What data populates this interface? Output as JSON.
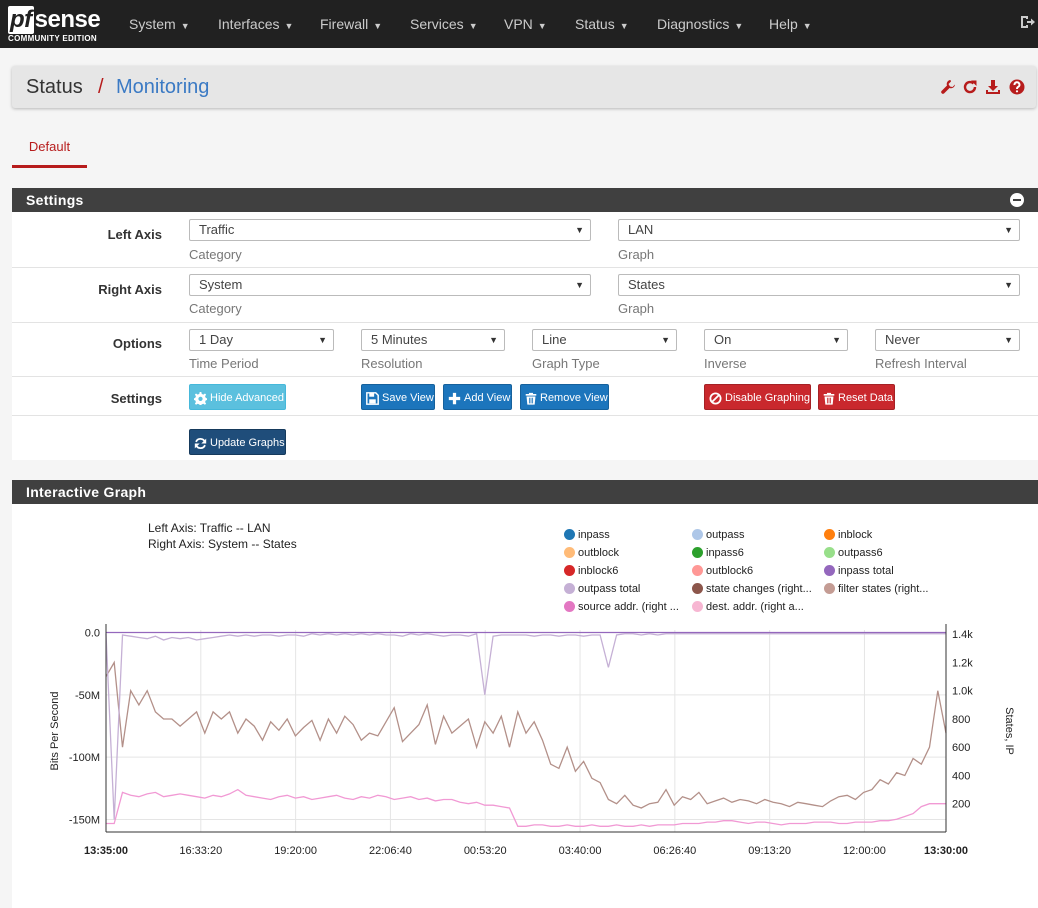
{
  "nav": {
    "logo_main": "sense",
    "logo_pf": "pf",
    "logo_sub": "COMMUNITY EDITION",
    "items": [
      {
        "label": "System"
      },
      {
        "label": "Interfaces"
      },
      {
        "label": "Firewall"
      },
      {
        "label": "Services"
      },
      {
        "label": "VPN"
      },
      {
        "label": "Status"
      },
      {
        "label": "Diagnostics"
      },
      {
        "label": "Help"
      }
    ]
  },
  "breadcrumb": {
    "section": "Status",
    "separator": "/",
    "page": "Monitoring",
    "icons": [
      "wrench-icon",
      "refresh-icon",
      "download-icon",
      "help-icon"
    ],
    "icon_color": "#b71c1c"
  },
  "tabs": [
    {
      "label": "Default",
      "active": true
    }
  ],
  "settings": {
    "title": "Settings",
    "left_axis": {
      "label": "Left Axis",
      "category_value": "Traffic",
      "category_hint": "Category",
      "graph_value": "LAN",
      "graph_hint": "Graph"
    },
    "right_axis": {
      "label": "Right Axis",
      "category_value": "System",
      "category_hint": "Category",
      "graph_value": "States",
      "graph_hint": "Graph"
    },
    "options": {
      "label": "Options",
      "time_period": {
        "value": "1 Day",
        "hint": "Time Period"
      },
      "resolution": {
        "value": "5 Minutes",
        "hint": "Resolution"
      },
      "graph_type": {
        "value": "Line",
        "hint": "Graph Type"
      },
      "inverse": {
        "value": "On",
        "hint": "Inverse"
      },
      "refresh": {
        "value": "Never",
        "hint": "Refresh Interval"
      }
    },
    "buttons": {
      "label": "Settings",
      "hide_advanced": "Hide Advanced",
      "save_view": "Save View",
      "add_view": "Add View",
      "remove_view": "Remove View",
      "disable_graphing": "Disable Graphing",
      "reset_data": "Reset Data",
      "update_graphs": "Update Graphs"
    }
  },
  "graph": {
    "title": "Interactive Graph",
    "left_axis_info": "Left Axis: Traffic -- LAN",
    "right_axis_info": "Right Axis: System -- States",
    "legend": [
      {
        "name": "inpass",
        "color": "#1f77b4"
      },
      {
        "name": "outpass",
        "color": "#aec7e8"
      },
      {
        "name": "inblock",
        "color": "#ff7f0e"
      },
      {
        "name": "outblock",
        "color": "#ffbb78"
      },
      {
        "name": "inpass6",
        "color": "#2ca02c"
      },
      {
        "name": "outpass6",
        "color": "#98df8a"
      },
      {
        "name": "inblock6",
        "color": "#d62728"
      },
      {
        "name": "outblock6",
        "color": "#ff9896"
      },
      {
        "name": "inpass total",
        "color": "#9467bd"
      },
      {
        "name": "outpass total",
        "color": "#c5b0d5"
      },
      {
        "name": "state changes (right...",
        "color": "#8c564b"
      },
      {
        "name": "filter states (right...",
        "color": "#c49c94"
      },
      {
        "name": "source addr. (right ...",
        "color": "#e377c2"
      },
      {
        "name": "dest. addr. (right a...",
        "color": "#f7b6d2"
      }
    ]
  },
  "chart_data": {
    "type": "line",
    "title": "",
    "xlabel": "",
    "ylabel": "Bits Per Second",
    "y2label": "States, IP",
    "x_ticks": [
      "13:35:00",
      "16:33:20",
      "19:20:00",
      "22:06:40",
      "00:53:20",
      "03:40:00",
      "06:26:40",
      "09:13:20",
      "12:00:00",
      "13:30:00"
    ],
    "y_ticks": [
      "0.0",
      "-50M",
      "-100M",
      "-150M"
    ],
    "y_tick_values": [
      0,
      -50000000,
      -100000000,
      -150000000
    ],
    "ylim": [
      -160000000,
      2000000
    ],
    "y2_ticks": [
      "1.4k",
      "1.2k",
      "1.0k",
      "800",
      "600",
      "400",
      "200"
    ],
    "y2_tick_values": [
      1400,
      1200,
      1000,
      800,
      600,
      400,
      200
    ],
    "y2lim": [
      0,
      1430
    ],
    "grid": true,
    "legend_position": "top-right",
    "series": [
      {
        "name": "filter states (right...",
        "axis": "right",
        "color": "#c49c94",
        "stroke": "#b39089",
        "values": [
          1100,
          1200,
          600,
          1000,
          900,
          1000,
          850,
          800,
          800,
          750,
          800,
          850,
          700,
          850,
          800,
          850,
          700,
          800,
          750,
          650,
          780,
          720,
          800,
          680,
          740,
          790,
          650,
          800,
          700,
          820,
          760,
          650,
          700,
          680,
          780,
          880,
          640,
          700,
          760,
          900,
          620,
          820,
          700,
          750,
          800,
          600,
          780,
          700,
          820,
          600,
          850,
          700,
          780,
          650,
          480,
          450,
          600,
          430,
          500,
          380,
          350,
          230,
          200,
          260,
          190,
          170,
          200,
          210,
          300,
          190,
          250,
          230,
          280,
          200,
          220,
          240,
          210,
          230,
          220,
          200,
          230,
          210,
          200,
          180,
          210,
          200,
          190,
          180,
          220,
          250,
          260,
          230,
          280,
          300,
          370,
          340,
          420,
          400,
          520,
          480,
          600,
          1000,
          700
        ]
      },
      {
        "name": "source addr. (right ...",
        "axis": "right",
        "color": "#e377c2",
        "stroke": "#f199d4",
        "values": [
          60,
          60,
          280,
          260,
          250,
          270,
          280,
          250,
          260,
          270,
          260,
          250,
          240,
          260,
          250,
          270,
          300,
          260,
          250,
          240,
          230,
          250,
          260,
          240,
          250,
          230,
          240,
          250,
          260,
          240,
          230,
          250,
          240,
          260,
          250,
          230,
          240,
          250,
          230,
          240,
          220,
          230,
          230,
          210,
          200,
          210,
          190,
          190,
          180,
          170,
          40,
          40,
          50,
          50,
          40,
          40,
          50,
          40,
          40,
          50,
          40,
          40,
          50,
          40,
          40,
          50,
          40,
          50,
          50,
          50,
          60,
          60,
          60,
          70,
          70,
          80,
          80,
          70,
          60,
          70,
          70,
          60,
          50,
          60,
          60,
          60,
          70,
          70,
          70,
          60,
          60,
          70,
          70,
          70,
          80,
          80,
          90,
          110,
          130,
          180,
          200,
          200,
          200
        ]
      },
      {
        "name": "inpass total",
        "axis": "left",
        "color": "#9467bd",
        "values": [
          0,
          0,
          0,
          0,
          0,
          0,
          0,
          0,
          0,
          0,
          0,
          0,
          0,
          0,
          0,
          0,
          0,
          0,
          0,
          0,
          0,
          0,
          0,
          0,
          0,
          0,
          0,
          0,
          0,
          0,
          0,
          0,
          0,
          0,
          0,
          0,
          0,
          0,
          0,
          0,
          0,
          0,
          0,
          0,
          0,
          0,
          0,
          0,
          0,
          0,
          0,
          0,
          0,
          0,
          0,
          0,
          0,
          0,
          0,
          0,
          0,
          0,
          0,
          0,
          0,
          0,
          0,
          0,
          0,
          0,
          0,
          0,
          0,
          0,
          0,
          0,
          0,
          0,
          0,
          0,
          0,
          0,
          0,
          0,
          0,
          0,
          0,
          0,
          0,
          0,
          0,
          0,
          0,
          0,
          0,
          0,
          0,
          0,
          0,
          0,
          0,
          0,
          0
        ]
      },
      {
        "name": "outpass total",
        "axis": "left",
        "color": "#c5b0d5",
        "values": [
          -1000000,
          -150000000,
          -2000000,
          -3000000,
          -4000000,
          -5000000,
          -3000000,
          -6000000,
          -4000000,
          -5000000,
          -4000000,
          -6000000,
          -5000000,
          -4000000,
          -3000000,
          -2000000,
          -3000000,
          -2000000,
          -3000000,
          -2000000,
          -2000000,
          -3000000,
          -2000000,
          -2000000,
          -3000000,
          -1000000,
          -2000000,
          -1000000,
          -2000000,
          -1000000,
          -2000000,
          -1000000,
          -2000000,
          -1000000,
          -2000000,
          -2000000,
          -3000000,
          -1000000,
          -2000000,
          -1000000,
          -2000000,
          -3000000,
          -2000000,
          -2000000,
          -3000000,
          -1000000,
          -50000000,
          -3000000,
          -2000000,
          -2000000,
          -2000000,
          -2000000,
          -3000000,
          -2000000,
          -2000000,
          -3000000,
          -2000000,
          -2000000,
          -3000000,
          -2000000,
          -2000000,
          -28000000,
          -2000000,
          -1000000,
          -1000000,
          -2000000,
          -1000000,
          -2000000,
          -1000000,
          -1000000,
          -1000000,
          -1000000,
          -1000000,
          -1000000,
          -1000000,
          -1000000,
          -1000000,
          -1000000,
          -1000000,
          -1000000,
          -1000000,
          -1000000,
          -1000000,
          -1000000,
          -1000000,
          -1000000,
          -1000000,
          -1000000,
          -1000000,
          -1000000,
          -1000000,
          -1000000,
          -1000000,
          -1000000,
          -1000000,
          -1000000,
          -1000000,
          -1000000,
          -1000000,
          -1000000,
          -1000000,
          -1000000,
          -1000000
        ]
      }
    ]
  }
}
